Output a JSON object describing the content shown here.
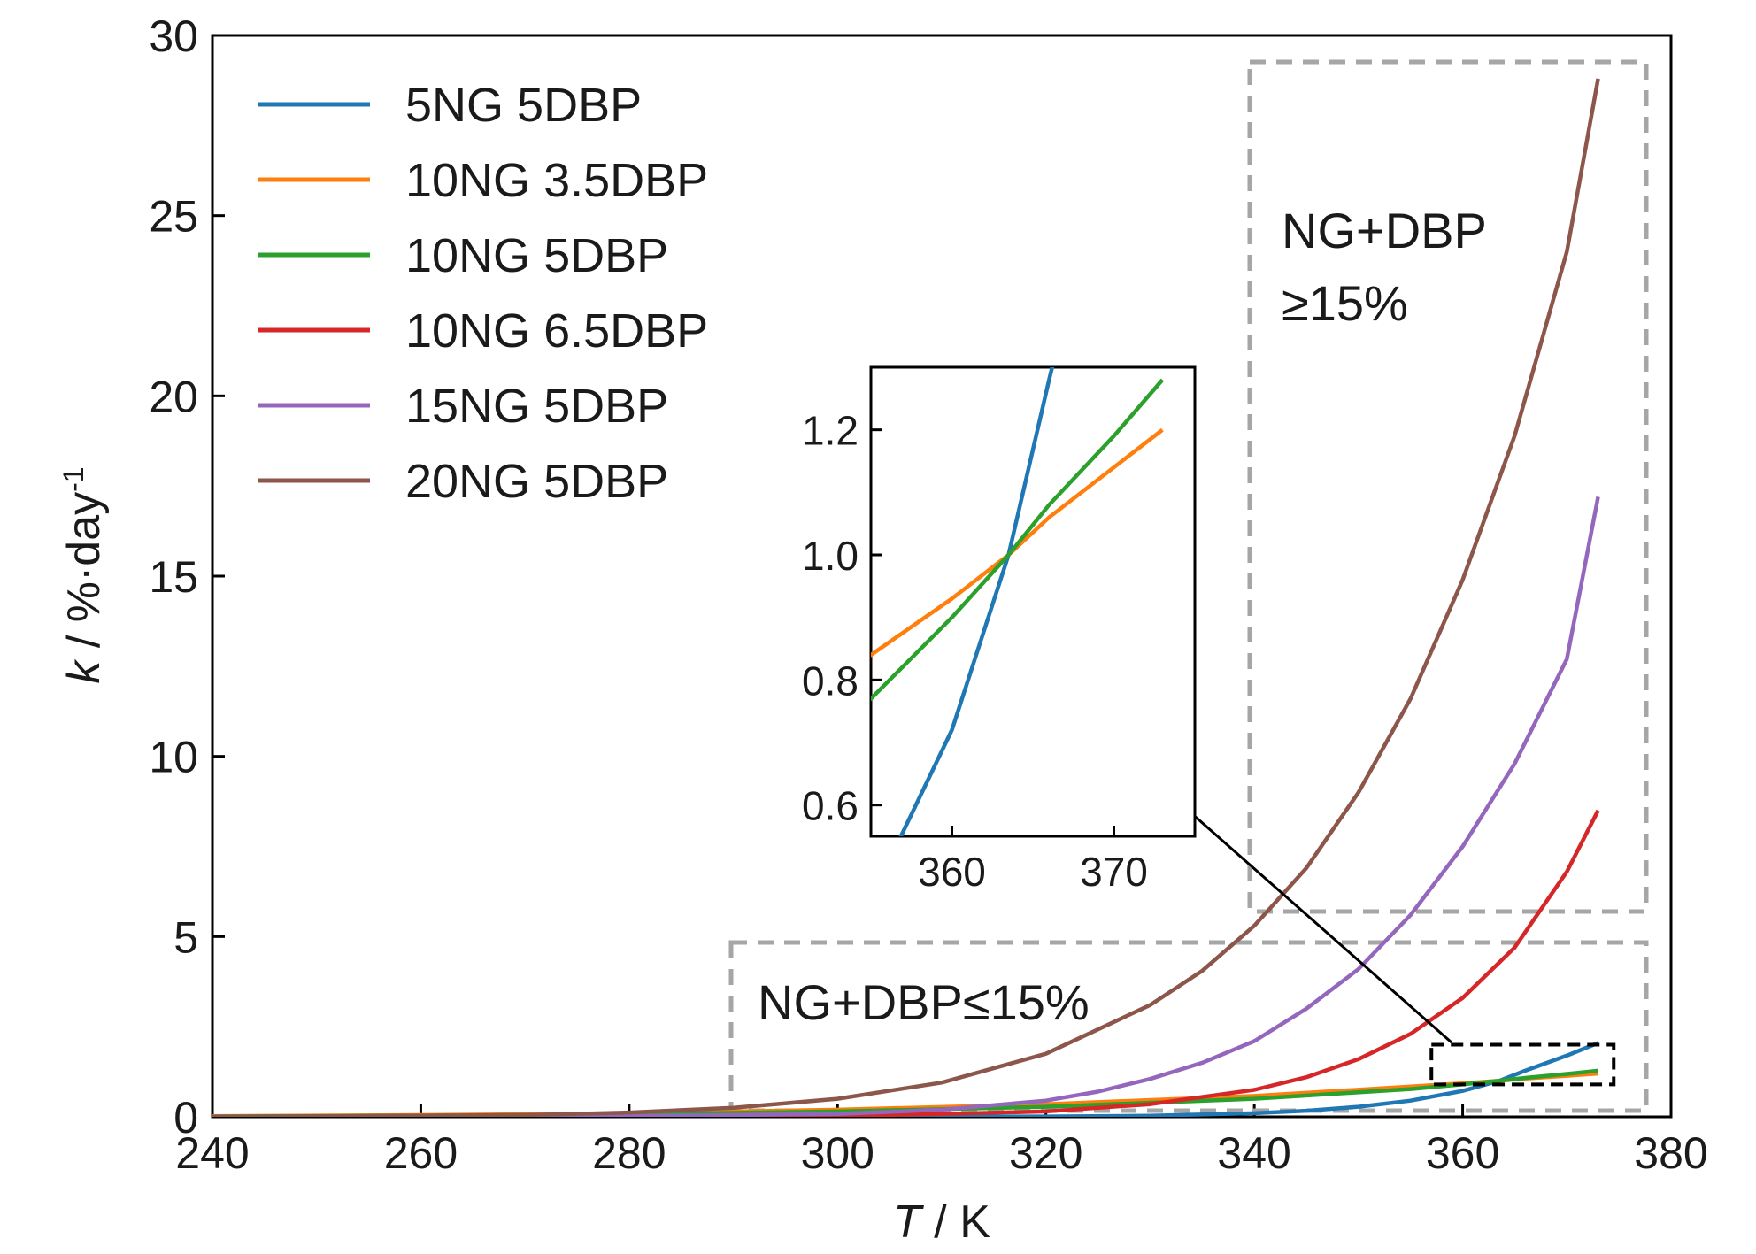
{
  "chart_data": {
    "type": "line",
    "title": "",
    "xlabel_var": "T",
    "xlabel_unit": " / K",
    "ylabel_var": "k",
    "ylabel_unit": " / %·day",
    "ylabel_sup": "-1",
    "xlim": [
      240,
      380
    ],
    "ylim": [
      0,
      30
    ],
    "xticks": [
      240,
      260,
      280,
      300,
      320,
      340,
      360,
      380
    ],
    "yticks": [
      0,
      5,
      10,
      15,
      20,
      25,
      30
    ],
    "grid": false,
    "legend_position": "top-left",
    "series": [
      {
        "name": "5NG 5DBP",
        "color": "#1f77b4",
        "x": [
          240,
          280,
          300,
          320,
          330,
          340,
          345,
          350,
          355,
          360,
          363.5,
          366,
          370,
          373
        ],
        "y": [
          0.0,
          0.0,
          0.0,
          0.01,
          0.03,
          0.1,
          0.17,
          0.28,
          0.45,
          0.72,
          1.0,
          1.28,
          1.7,
          2.05
        ]
      },
      {
        "name": "10NG 3.5DBP",
        "color": "#ff7f0e",
        "x": [
          240,
          260,
          280,
          300,
          320,
          340,
          355,
          360,
          363.5,
          366,
          370,
          373
        ],
        "y": [
          0.02,
          0.05,
          0.1,
          0.2,
          0.35,
          0.58,
          0.84,
          0.93,
          1.0,
          1.06,
          1.14,
          1.2
        ]
      },
      {
        "name": "10NG 5DBP",
        "color": "#2ca02c",
        "x": [
          240,
          260,
          280,
          300,
          320,
          340,
          355,
          360,
          363.5,
          366,
          370,
          373
        ],
        "y": [
          0.01,
          0.03,
          0.07,
          0.15,
          0.28,
          0.5,
          0.77,
          0.9,
          1.0,
          1.08,
          1.19,
          1.28
        ]
      },
      {
        "name": "10NG 6.5DBP",
        "color": "#d62728",
        "x": [
          240,
          280,
          300,
          310,
          320,
          330,
          340,
          345,
          350,
          355,
          360,
          365,
          370,
          373
        ],
        "y": [
          0.0,
          0.0,
          0.03,
          0.08,
          0.15,
          0.35,
          0.75,
          1.1,
          1.6,
          2.3,
          3.3,
          4.7,
          6.8,
          8.5
        ]
      },
      {
        "name": "15NG 5DBP",
        "color": "#9467bd",
        "x": [
          240,
          280,
          300,
          310,
          320,
          325,
          330,
          335,
          340,
          345,
          350,
          355,
          360,
          365,
          370,
          373
        ],
        "y": [
          0.0,
          0.02,
          0.08,
          0.2,
          0.45,
          0.7,
          1.05,
          1.5,
          2.1,
          3.0,
          4.1,
          5.6,
          7.5,
          9.8,
          12.7,
          17.2
        ]
      },
      {
        "name": "20NG 5DBP",
        "color": "#8c564b",
        "x": [
          240,
          270,
          280,
          290,
          300,
          310,
          320,
          330,
          335,
          340,
          345,
          350,
          355,
          360,
          365,
          370,
          373
        ],
        "y": [
          0.0,
          0.05,
          0.12,
          0.25,
          0.5,
          0.95,
          1.75,
          3.1,
          4.05,
          5.3,
          6.9,
          9.0,
          11.6,
          14.9,
          18.9,
          24.0,
          28.8
        ]
      }
    ],
    "annotations": [
      {
        "label_line1": "NG+DBP",
        "label_line2": "≥15%"
      },
      {
        "label": "NG+DBP≤15%"
      }
    ],
    "inset": {
      "xlim": [
        355,
        375
      ],
      "ylim": [
        0.55,
        1.3
      ],
      "xticks": [
        360,
        370
      ],
      "yticks": [
        0.6,
        0.8,
        1.0,
        1.2
      ],
      "ytick_labels": [
        "0.6",
        "0.8",
        "1.0",
        "1.2"
      ],
      "series": [
        "5NG 5DBP",
        "10NG 3.5DBP",
        "10NG 5DBP"
      ]
    },
    "zoom_box": {
      "x": [
        357,
        374.5
      ],
      "y": [
        0.9,
        2.0
      ]
    }
  }
}
